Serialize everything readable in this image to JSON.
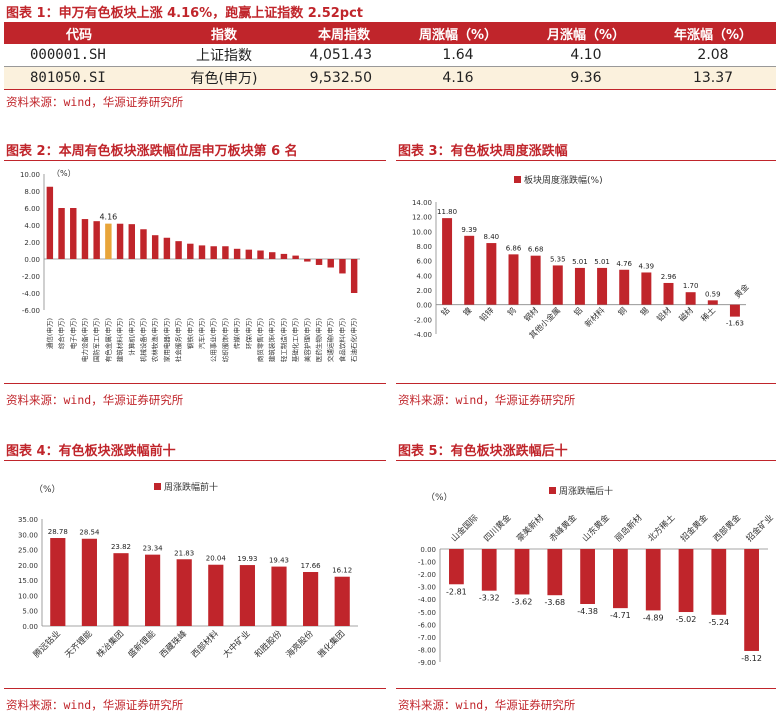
{
  "fig1": {
    "title": "图表 1：申万有色板块上涨 4.16%，跑赢上证指数 2.52pct",
    "headers": [
      "代码",
      "指数",
      "本周指数",
      "周涨幅（%）",
      "月涨幅（%）",
      "年涨幅（%）"
    ],
    "rows": [
      [
        "000001.SH",
        "上证指数",
        "4,051.43",
        "1.64",
        "4.10",
        "2.08"
      ],
      [
        "801050.SI",
        "有色(申万)",
        "9,532.50",
        "4.16",
        "9.36",
        "13.37"
      ]
    ],
    "source": "资料来源：wind，华源证券研究所"
  },
  "fig2": {
    "title": "图表 2：本周有色板块涨跌幅位居申万板块第 6 名",
    "source": "资料来源：wind，华源证券研究所"
  },
  "fig3": {
    "title": "图表 3：有色板块周度涨跌幅",
    "source": "资料来源：wind，华源证券研究所"
  },
  "fig4": {
    "title": "图表 4：有色板块涨跌幅前十",
    "source": "资料来源：wind，华源证券研究所"
  },
  "fig5": {
    "title": "图表 5：有色板块涨跌幅后十",
    "source": "资料来源：wind，华源证券研究所"
  },
  "colors": {
    "bar": "#c0252b",
    "highlight": "#e8a53a",
    "title": "#c0252b"
  },
  "chart_data": [
    {
      "id": "fig2",
      "type": "bar",
      "unit_label": "（%）",
      "categories": [
        "通信(申万)",
        "综合(申万)",
        "电子(申万)",
        "电力设备(申万)",
        "国防军工(申万)",
        "有色金属(申万)",
        "建筑材料(申万)",
        "计算机(申万)",
        "机械设备(申万)",
        "农林牧渔(申万)",
        "家用电器(申万)",
        "社会服务(申万)",
        "钢铁(申万)",
        "汽车(申万)",
        "公用事业(申万)",
        "纺织服饰(申万)",
        "传媒(申万)",
        "环保(申万)",
        "商贸零售(申万)",
        "建筑装饰(申万)",
        "轻工制造(申万)",
        "基础化工(申万)",
        "美容护理(申万)",
        "医药生物(申万)",
        "交通运输(申万)",
        "食品饮料(申万)",
        "石油石化(申万)"
      ],
      "values": [
        8.5,
        6.0,
        6.0,
        4.7,
        4.45,
        4.16,
        4.15,
        4.1,
        3.5,
        2.8,
        2.5,
        2.1,
        1.8,
        1.6,
        1.5,
        1.5,
        1.2,
        1.1,
        1.0,
        0.8,
        0.6,
        0.4,
        -0.3,
        -0.7,
        -1.0,
        -1.7,
        -4.0
      ],
      "highlight_index": 5,
      "highlight_label": "4.16",
      "ylim": [
        -6,
        10
      ],
      "yticks": [
        "-6.00",
        "-4.00",
        "-2.00",
        "0.00",
        "2.00",
        "4.00",
        "6.00",
        "8.00",
        "10.00"
      ]
    },
    {
      "id": "fig3",
      "type": "bar",
      "legend": "板块周度涨跌幅(%)",
      "categories": [
        "钴",
        "镍",
        "铅锌",
        "钨",
        "钢材",
        "其他小金属",
        "铝",
        "新材料",
        "铜",
        "锡",
        "铝材",
        "磁材",
        "稀土",
        "黄金"
      ],
      "values": [
        11.8,
        9.39,
        8.4,
        6.86,
        6.68,
        5.35,
        5.01,
        5.01,
        4.76,
        4.39,
        2.96,
        1.7,
        0.59,
        -1.63
      ],
      "labels": [
        "11.80",
        "9.39",
        "8.40",
        "6.86",
        "6.68",
        "5.35",
        "5.01",
        "5.01",
        "4.76",
        "4.39",
        "2.96",
        "1.70",
        "0.59",
        "-1.63"
      ],
      "ylim": [
        -4,
        14
      ],
      "yticks": [
        "-4.00",
        "-2.00",
        "0.00",
        "2.00",
        "4.00",
        "6.00",
        "8.00",
        "10.00",
        "12.00",
        "14.00"
      ]
    },
    {
      "id": "fig4",
      "type": "bar",
      "legend": "周涨跌幅前十",
      "unit_label": "（%）",
      "categories": [
        "腾远钴业",
        "天齐锂能",
        "株冶集团",
        "盛新锂能",
        "西藏珠峰",
        "西部材料",
        "大中矿业",
        "和胜股份",
        "海亮股份",
        "雅化集团"
      ],
      "values": [
        28.78,
        28.54,
        23.82,
        23.34,
        21.83,
        20.04,
        19.93,
        19.43,
        17.66,
        16.12
      ],
      "labels": [
        "28.78",
        "28.54",
        "23.82",
        "23.34",
        "21.83",
        "20.04",
        "19.93",
        "19.43",
        "17.66",
        "16.12"
      ],
      "ylim": [
        0,
        35
      ],
      "yticks": [
        "0.00",
        "5.00",
        "10.00",
        "15.00",
        "20.00",
        "25.00",
        "30.00",
        "35.00"
      ]
    },
    {
      "id": "fig5",
      "type": "bar",
      "legend": "周涨跌幅后十",
      "unit_label": "（%）",
      "categories": [
        "山金国际",
        "四川黄金",
        "豪美新材",
        "赤峰黄金",
        "山东黄金",
        "丽岛新材",
        "北方稀土",
        "招金黄金",
        "西部黄金",
        "招金矿业"
      ],
      "values": [
        -2.81,
        -3.32,
        -3.62,
        -3.68,
        -4.38,
        -4.71,
        -4.89,
        -5.02,
        -5.24,
        -8.12
      ],
      "labels": [
        "-2.81",
        "-3.32",
        "-3.62",
        "-3.68",
        "-4.38",
        "-4.71",
        "-4.89",
        "-5.02",
        "-5.24",
        "-8.12"
      ],
      "ylim": [
        -9,
        0
      ],
      "yticks": [
        "-9.00",
        "-8.00",
        "-7.00",
        "-6.00",
        "-5.00",
        "-4.00",
        "-3.00",
        "-2.00",
        "-1.00",
        "0.00"
      ]
    }
  ]
}
